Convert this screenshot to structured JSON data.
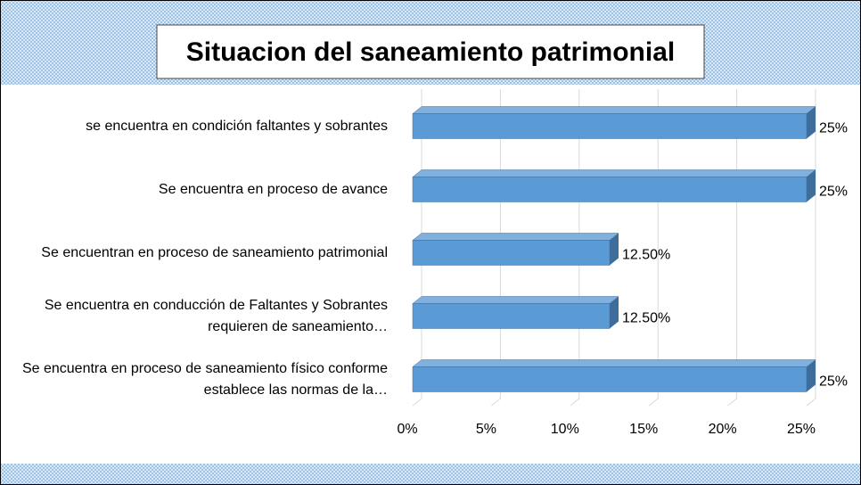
{
  "chart_data": {
    "type": "bar3d_horizontal",
    "title": "Situacion del saneamiento patrimonial",
    "categories": [
      "se encuentra en condición faltantes y sobrantes",
      "Se encuentra en proceso de avance",
      "Se encuentran en proceso de saneamiento patrimonial",
      "Se encuentra en conducción de Faltantes y Sobrantes requieren de saneamiento…",
      "Se encuentra en proceso de saneamiento físico conforme establece las normas de la…"
    ],
    "values": [
      25,
      25,
      12.5,
      12.5,
      25
    ],
    "value_labels": [
      "25%",
      "25%",
      "12.50%",
      "12.50%",
      "25%"
    ],
    "color": "#5b9bd5",
    "xlim": [
      0,
      25
    ],
    "xticks": [
      {
        "value": 0,
        "label": "0%"
      },
      {
        "value": 5,
        "label": "5%"
      },
      {
        "value": 10,
        "label": "10%"
      },
      {
        "value": 15,
        "label": "15%"
      },
      {
        "value": 20,
        "label": "20%"
      },
      {
        "value": 25,
        "label": "25%"
      }
    ],
    "grid": true
  }
}
